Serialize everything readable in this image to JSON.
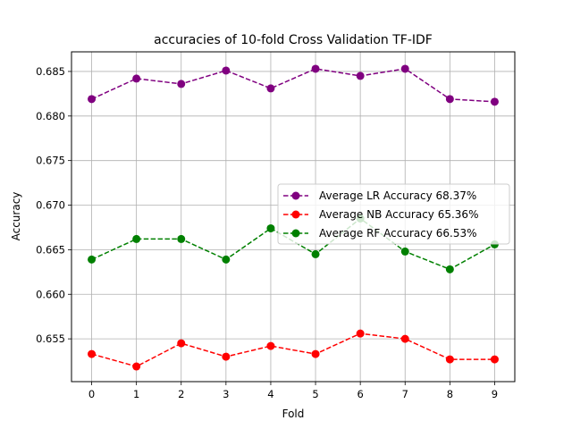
{
  "chart_data": {
    "type": "line",
    "title": "accuracies of 10-fold Cross Validation TF-IDF",
    "xlabel": "Fold",
    "ylabel": "Accuracy",
    "x": [
      0,
      1,
      2,
      3,
      4,
      5,
      6,
      7,
      8,
      9
    ],
    "xticks": [
      "0",
      "1",
      "2",
      "3",
      "4",
      "5",
      "6",
      "7",
      "8",
      "9"
    ],
    "yticks": [
      "0.655",
      "0.660",
      "0.665",
      "0.670",
      "0.675",
      "0.680",
      "0.685"
    ],
    "ylim": [
      0.6502,
      0.6872
    ],
    "xlim": [
      -0.45,
      9.45
    ],
    "grid": true,
    "legend_position": "center-right",
    "series": [
      {
        "name": "Average LR Accuracy 68.37%",
        "color": "#800080",
        "linestyle": "dashed",
        "marker": "circle",
        "values": [
          0.6819,
          0.6842,
          0.6836,
          0.6851,
          0.6831,
          0.6853,
          0.6845,
          0.6853,
          0.6819,
          0.6816
        ]
      },
      {
        "name": "Average NB Accuracy 65.36%",
        "color": "#ff0000",
        "linestyle": "dashed",
        "marker": "circle",
        "values": [
          0.6533,
          0.6519,
          0.6545,
          0.653,
          0.6542,
          0.6533,
          0.6556,
          0.655,
          0.6527,
          0.6527
        ]
      },
      {
        "name": "Average RF Accuracy 66.53%",
        "color": "#008000",
        "linestyle": "dashed",
        "marker": "circle",
        "values": [
          0.6639,
          0.6662,
          0.6662,
          0.6639,
          0.6674,
          0.6645,
          0.6685,
          0.6648,
          0.6628,
          0.6656
        ]
      }
    ]
  }
}
